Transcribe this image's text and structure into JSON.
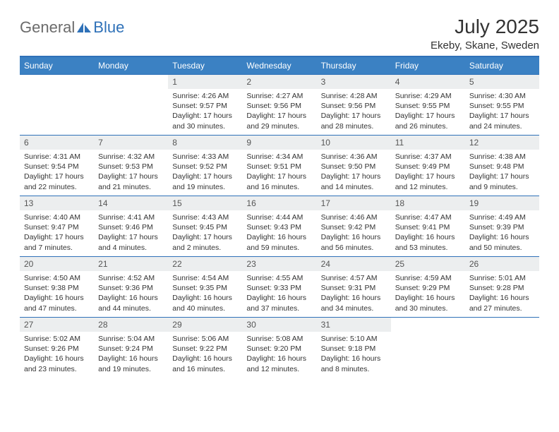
{
  "logo": {
    "text1": "General",
    "text2": "Blue"
  },
  "title": "July 2025",
  "location": "Ekeby, Skane, Sweden",
  "weekdays": [
    "Sunday",
    "Monday",
    "Tuesday",
    "Wednesday",
    "Thursday",
    "Friday",
    "Saturday"
  ],
  "colors": {
    "header_bg": "#3b81c3",
    "border": "#2f71b8",
    "daynum_bg": "#eceeef",
    "text_dark": "#333333",
    "logo_gray": "#6b6b6b",
    "logo_blue": "#2f71b8"
  },
  "weeks": [
    [
      null,
      null,
      {
        "n": "1",
        "sr": "4:26 AM",
        "ss": "9:57 PM",
        "dl": "17 hours and 30 minutes."
      },
      {
        "n": "2",
        "sr": "4:27 AM",
        "ss": "9:56 PM",
        "dl": "17 hours and 29 minutes."
      },
      {
        "n": "3",
        "sr": "4:28 AM",
        "ss": "9:56 PM",
        "dl": "17 hours and 28 minutes."
      },
      {
        "n": "4",
        "sr": "4:29 AM",
        "ss": "9:55 PM",
        "dl": "17 hours and 26 minutes."
      },
      {
        "n": "5",
        "sr": "4:30 AM",
        "ss": "9:55 PM",
        "dl": "17 hours and 24 minutes."
      }
    ],
    [
      {
        "n": "6",
        "sr": "4:31 AM",
        "ss": "9:54 PM",
        "dl": "17 hours and 22 minutes."
      },
      {
        "n": "7",
        "sr": "4:32 AM",
        "ss": "9:53 PM",
        "dl": "17 hours and 21 minutes."
      },
      {
        "n": "8",
        "sr": "4:33 AM",
        "ss": "9:52 PM",
        "dl": "17 hours and 19 minutes."
      },
      {
        "n": "9",
        "sr": "4:34 AM",
        "ss": "9:51 PM",
        "dl": "17 hours and 16 minutes."
      },
      {
        "n": "10",
        "sr": "4:36 AM",
        "ss": "9:50 PM",
        "dl": "17 hours and 14 minutes."
      },
      {
        "n": "11",
        "sr": "4:37 AM",
        "ss": "9:49 PM",
        "dl": "17 hours and 12 minutes."
      },
      {
        "n": "12",
        "sr": "4:38 AM",
        "ss": "9:48 PM",
        "dl": "17 hours and 9 minutes."
      }
    ],
    [
      {
        "n": "13",
        "sr": "4:40 AM",
        "ss": "9:47 PM",
        "dl": "17 hours and 7 minutes."
      },
      {
        "n": "14",
        "sr": "4:41 AM",
        "ss": "9:46 PM",
        "dl": "17 hours and 4 minutes."
      },
      {
        "n": "15",
        "sr": "4:43 AM",
        "ss": "9:45 PM",
        "dl": "17 hours and 2 minutes."
      },
      {
        "n": "16",
        "sr": "4:44 AM",
        "ss": "9:43 PM",
        "dl": "16 hours and 59 minutes."
      },
      {
        "n": "17",
        "sr": "4:46 AM",
        "ss": "9:42 PM",
        "dl": "16 hours and 56 minutes."
      },
      {
        "n": "18",
        "sr": "4:47 AM",
        "ss": "9:41 PM",
        "dl": "16 hours and 53 minutes."
      },
      {
        "n": "19",
        "sr": "4:49 AM",
        "ss": "9:39 PM",
        "dl": "16 hours and 50 minutes."
      }
    ],
    [
      {
        "n": "20",
        "sr": "4:50 AM",
        "ss": "9:38 PM",
        "dl": "16 hours and 47 minutes."
      },
      {
        "n": "21",
        "sr": "4:52 AM",
        "ss": "9:36 PM",
        "dl": "16 hours and 44 minutes."
      },
      {
        "n": "22",
        "sr": "4:54 AM",
        "ss": "9:35 PM",
        "dl": "16 hours and 40 minutes."
      },
      {
        "n": "23",
        "sr": "4:55 AM",
        "ss": "9:33 PM",
        "dl": "16 hours and 37 minutes."
      },
      {
        "n": "24",
        "sr": "4:57 AM",
        "ss": "9:31 PM",
        "dl": "16 hours and 34 minutes."
      },
      {
        "n": "25",
        "sr": "4:59 AM",
        "ss": "9:29 PM",
        "dl": "16 hours and 30 minutes."
      },
      {
        "n": "26",
        "sr": "5:01 AM",
        "ss": "9:28 PM",
        "dl": "16 hours and 27 minutes."
      }
    ],
    [
      {
        "n": "27",
        "sr": "5:02 AM",
        "ss": "9:26 PM",
        "dl": "16 hours and 23 minutes."
      },
      {
        "n": "28",
        "sr": "5:04 AM",
        "ss": "9:24 PM",
        "dl": "16 hours and 19 minutes."
      },
      {
        "n": "29",
        "sr": "5:06 AM",
        "ss": "9:22 PM",
        "dl": "16 hours and 16 minutes."
      },
      {
        "n": "30",
        "sr": "5:08 AM",
        "ss": "9:20 PM",
        "dl": "16 hours and 12 minutes."
      },
      {
        "n": "31",
        "sr": "5:10 AM",
        "ss": "9:18 PM",
        "dl": "16 hours and 8 minutes."
      },
      null,
      null
    ]
  ],
  "labels": {
    "sunrise": "Sunrise: ",
    "sunset": "Sunset: ",
    "daylight": "Daylight: "
  }
}
